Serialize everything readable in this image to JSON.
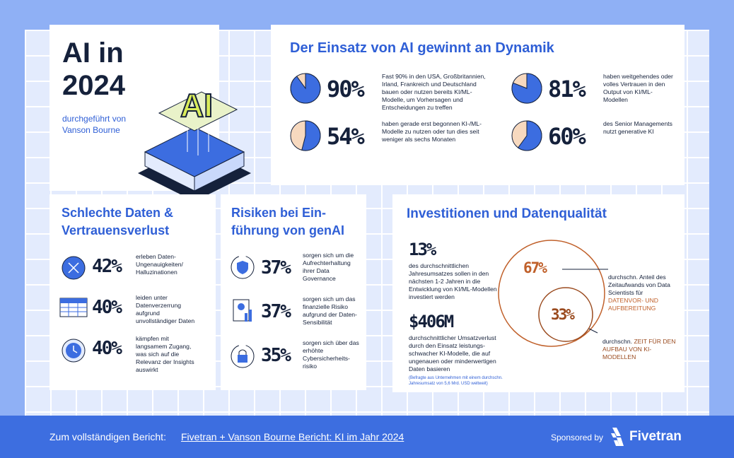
{
  "header": {
    "title_line1": "AI in",
    "title_line2": "2024",
    "subtitle_line1": "durchgeführt von",
    "subtitle_line2": "Vanson Bourne"
  },
  "dynamics": {
    "title": "Der Einsatz von AI gewinnt an Dynamik",
    "items": [
      {
        "value": 90,
        "label": "90%",
        "text": "Fast 90% in den USA, Großbritannien, Irland, Frankreich und Deutschland bauen oder nutzen bereits KI/ML-Modelle, um Vorhersagen und Entscheidungen zu treffen"
      },
      {
        "value": 81,
        "label": "81%",
        "text": "haben weitgehendes oder volles Vertrauen in den Output von KI/ML-Modellen"
      },
      {
        "value": 54,
        "label": "54%",
        "text": "haben gerade erst begonnen KI-/ML-Modelle zu nutzen oder tun dies seit weniger als sechs Monaten"
      },
      {
        "value": 60,
        "label": "60%",
        "text": "des Senior Managements nutzt generative KI"
      }
    ]
  },
  "bad_data": {
    "title_line1": "Schlechte Daten &",
    "title_line2": "Vertrauensverlust",
    "items": [
      {
        "label": "42%",
        "text": "erleben Daten-Ungenauigkeiten/ Halluzinationen"
      },
      {
        "label": "40%",
        "text": "leiden unter Datenverzerrung aufgrund unvollständiger Daten"
      },
      {
        "label": "40%",
        "text": "kämpfen mit langsamem Zugang, was sich auf die Relevanz der Insights auswirkt"
      }
    ]
  },
  "risks": {
    "title_line1": "Risiken bei Ein-",
    "title_line2": "führung von genAI",
    "items": [
      {
        "label": "37%",
        "text": "sorgen sich um die Aufrechterhaltung ihrer Data Governance"
      },
      {
        "label": "37%",
        "text": "sorgen sich um das finanzielle Risiko aufgrund der Daten-Sensibilität"
      },
      {
        "label": "35%",
        "text": "sorgen sich über das erhöhte Cybersicherheits-risiko"
      }
    ]
  },
  "investments": {
    "title": "Investitionen und Datenqualität",
    "stat1": {
      "label": "13%",
      "text": "des durchschnittlichen Jahresumsatzes sollen in den nächsten 1-2 Jahren in die Entwicklung von KI/ML-Modellen investiert werden"
    },
    "stat2": {
      "label": "$406M",
      "text": "durchschnittlicher Umsatzverlust durch den Einsatz leistungs-schwacher KI-Modelle, die auf ungenauen oder minderwertigen Daten basieren"
    },
    "footnote": "(Befragte aus Unternehmen mit einem durchschn. Jahresumsatz von 5,6 Mrd. USD weltweit)",
    "outer": {
      "label": "67%",
      "text": "durchschn. Anteil des Zeitaufwands von Data Scientists für",
      "highlight": "DATENVOR- UND AUFBEREITUNG"
    },
    "inner": {
      "label": "33%",
      "text": "durchschn.",
      "highlight": "ZEIT FÜR DEN AUFBAU VON KI-MODELLEN"
    }
  },
  "footer": {
    "lead": "Zum vollständigen Bericht:",
    "link": "Fivetran + Vanson Bourne Bericht: KI im Jahr 2024",
    "sponsored": "Sponsored by",
    "brand": "Fivetran"
  }
}
